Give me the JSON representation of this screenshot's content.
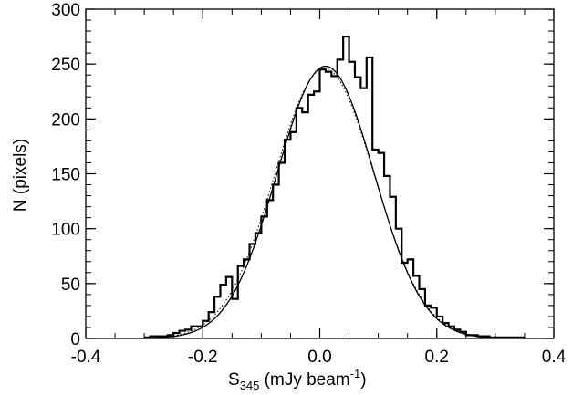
{
  "chart_data": {
    "type": "histogram",
    "title": "",
    "xlabel": {
      "main": "S",
      "subscript": "345",
      "rest": " (mJy beam",
      "superscript": "-1",
      "close": ")"
    },
    "ylabel": "N (pixels)",
    "xlim": [
      -0.4,
      0.4
    ],
    "ylim": [
      0,
      300
    ],
    "x_ticks": [
      -0.4,
      -0.2,
      0.0,
      0.2,
      0.4
    ],
    "x_tick_labels": [
      "-0.4",
      "-0.2",
      "0.0",
      "0.2",
      "0.4"
    ],
    "y_ticks": [
      0,
      50,
      100,
      150,
      200,
      250,
      300
    ],
    "y_tick_labels": [
      "0",
      "50",
      "100",
      "150",
      "200",
      "250",
      "300"
    ],
    "x_minor_step": 0.05,
    "y_minor_step": 10,
    "grid": false,
    "legend": "none",
    "bin_edges_start": -0.3,
    "bin_width": 0.01,
    "histogram_counts": [
      1,
      2,
      2,
      2,
      3,
      5,
      7,
      8,
      11,
      11,
      16,
      24,
      38,
      49,
      56,
      36,
      66,
      72,
      86,
      96,
      111,
      126,
      140,
      160,
      181,
      188,
      210,
      206,
      222,
      225,
      245,
      243,
      239,
      254,
      275,
      252,
      238,
      228,
      256,
      172,
      169,
      148,
      129,
      100,
      69,
      72,
      57,
      45,
      30,
      28,
      20,
      14,
      11,
      8,
      6,
      3,
      3,
      2,
      2,
      1,
      1,
      1,
      1,
      1,
      1
    ],
    "gaussian_fit": {
      "amplitude": 248,
      "mean": 0.01,
      "sigma": 0.083,
      "style": "solid"
    },
    "gaussian_fit_2": {
      "amplitude": 246,
      "mean": 0.008,
      "sigma": 0.085,
      "style": "dotted"
    }
  }
}
